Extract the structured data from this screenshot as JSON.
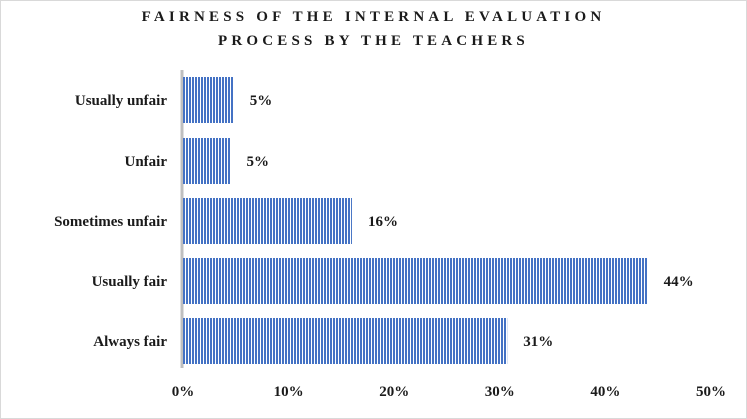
{
  "chart_data": {
    "type": "bar",
    "orientation": "horizontal",
    "title_lines": [
      "FAIRNESS OF THE INTERNAL EVALUATION",
      "PROCESS BY THE TEACHERS"
    ],
    "categories": [
      "Usually unfair",
      "Unfair",
      "Sometimes unfair",
      "Usually fair",
      "Always fair"
    ],
    "values": [
      5,
      5,
      16,
      44,
      31
    ],
    "bar_lengths": [
      4.8,
      4.5,
      16.0,
      44.0,
      30.7
    ],
    "data_labels": [
      "5%",
      "5%",
      "16%",
      "44%",
      "31%"
    ],
    "xlim": [
      0,
      50
    ],
    "x_ticks": [
      "0%",
      "10%",
      "20%",
      "30%",
      "40%",
      "50%"
    ],
    "grid": false,
    "legend": "none",
    "bar_color": "#4472c4",
    "bar_stripe_color": "#ffffff"
  }
}
